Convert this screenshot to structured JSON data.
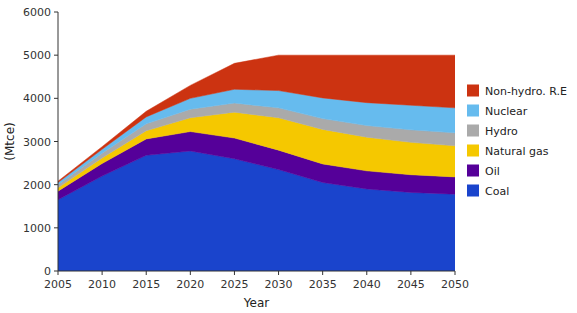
{
  "chart_data": {
    "type": "area",
    "stacked": true,
    "xlabel": "Year",
    "ylabel": "(Mtce)",
    "x": [
      2005,
      2010,
      2015,
      2020,
      2025,
      2030,
      2035,
      2040,
      2045,
      2050
    ],
    "xlim": [
      2005,
      2050
    ],
    "xticks": [
      2005,
      2010,
      2015,
      2020,
      2025,
      2030,
      2035,
      2040,
      2045,
      2050
    ],
    "ylim": [
      0,
      6000
    ],
    "yticks": [
      0,
      1000,
      2000,
      3000,
      4000,
      5000,
      6000
    ],
    "grid": false,
    "legend": "right",
    "series": [
      {
        "name": "Coal",
        "color": "#1a44cc",
        "values": [
          1650,
          2200,
          2680,
          2780,
          2600,
          2350,
          2050,
          1900,
          1820,
          1780
        ]
      },
      {
        "name": "Oil",
        "color": "#550099",
        "values": [
          200,
          290,
          380,
          450,
          480,
          450,
          430,
          420,
          410,
          400
        ]
      },
      {
        "name": "Natural gas",
        "color": "#f5c800",
        "values": [
          80,
          130,
          190,
          320,
          600,
          750,
          800,
          780,
          750,
          720
        ]
      },
      {
        "name": "Hydro",
        "color": "#aaaaaa",
        "values": [
          70,
          110,
          160,
          200,
          210,
          230,
          250,
          270,
          290,
          300
        ]
      },
      {
        "name": "Nuclear",
        "color": "#66bbee",
        "values": [
          50,
          90,
          160,
          250,
          320,
          400,
          480,
          530,
          570,
          580
        ]
      },
      {
        "name": "Non-hydro. R.E",
        "color": "#cc3311",
        "values": [
          30,
          60,
          130,
          300,
          600,
          820,
          990,
          1100,
          1160,
          1220
        ]
      }
    ]
  }
}
